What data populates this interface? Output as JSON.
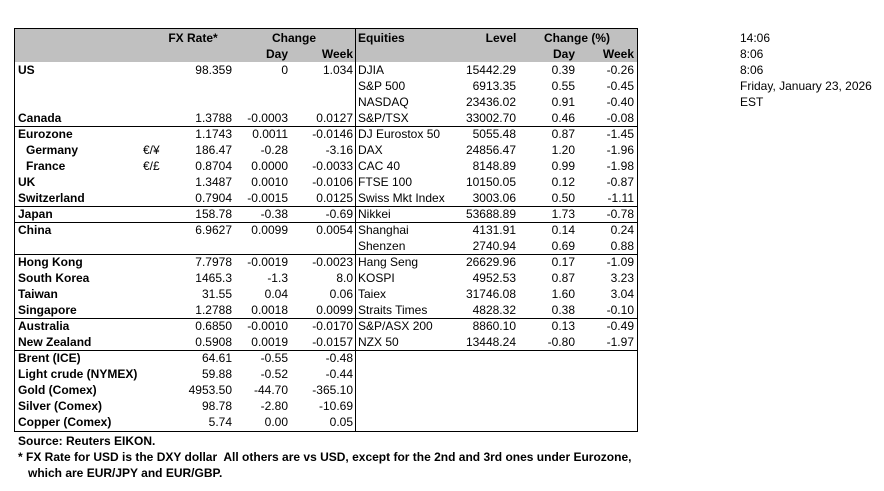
{
  "table": {
    "header": {
      "fx_rate": "FX Rate*",
      "change": "Change",
      "fx_day": "Day",
      "fx_week": "Week",
      "equities": "Equities",
      "level": "Level",
      "change_pct": "Change (%)",
      "eq_day": "Day",
      "eq_week": "Week"
    },
    "rows": [
      {
        "country": "US",
        "fx": "98.359",
        "fx_day": "0",
        "fx_week": "1.034",
        "equity": "DJIA",
        "level": "15442.29",
        "eq_day": "0.39",
        "eq_week": "-0.26"
      },
      {
        "equity": "S&P 500",
        "level": "6913.35",
        "eq_day": "0.55",
        "eq_week": "-0.45"
      },
      {
        "equity": "NASDAQ",
        "level": "23436.02",
        "eq_day": "0.91",
        "eq_week": "-0.40"
      },
      {
        "country": "Canada",
        "fx": "1.3788",
        "fx_day": "-0.0003",
        "fx_week": "0.0127",
        "equity": "S&P/TSX",
        "level": "33002.70",
        "eq_day": "0.46",
        "eq_week": "-0.08"
      },
      {
        "country": "Eurozone",
        "fx": "1.1743",
        "fx_day": "0.0011",
        "fx_week": "-0.0146",
        "equity": "DJ Eurostox 50",
        "level": "5055.48",
        "eq_day": "0.87",
        "eq_week": "-1.45"
      },
      {
        "country": "Germany",
        "pair": "€/¥",
        "fx": "186.47",
        "fx_day": "-0.28",
        "fx_week": "-3.16",
        "equity": "DAX",
        "level": "24856.47",
        "eq_day": "1.20",
        "eq_week": "-1.96"
      },
      {
        "country": "France",
        "pair": "€/£",
        "fx": "0.8704",
        "fx_day": "0.0000",
        "fx_week": "-0.0033",
        "equity": "CAC 40",
        "level": "8148.89",
        "eq_day": "0.99",
        "eq_week": "-1.98"
      },
      {
        "country": "UK",
        "fx": "1.3487",
        "fx_day": "0.0010",
        "fx_week": "-0.0106",
        "equity": "FTSE 100",
        "level": "10150.05",
        "eq_day": "0.12",
        "eq_week": "-0.87"
      },
      {
        "country": "Switzerland",
        "fx": "0.7904",
        "fx_day": "-0.0015",
        "fx_week": "0.0125",
        "equity": "Swiss Mkt Index",
        "level": "3003.06",
        "eq_day": "0.50",
        "eq_week": "-1.11"
      },
      {
        "country": "Japan",
        "fx": "158.78",
        "fx_day": "-0.38",
        "fx_week": "-0.69",
        "equity": "Nikkei",
        "level": "53688.89",
        "eq_day": "1.73",
        "eq_week": "-0.78"
      },
      {
        "country": "China",
        "fx": "6.9627",
        "fx_day": "0.0099",
        "fx_week": "0.0054",
        "equity": "Shanghai",
        "level": "4131.91",
        "eq_day": "0.14",
        "eq_week": "0.24"
      },
      {
        "equity": "Shenzen",
        "level": "2740.94",
        "eq_day": "0.69",
        "eq_week": "0.88"
      },
      {
        "country": "Hong Kong",
        "fx": "7.7978",
        "fx_day": "-0.0019",
        "fx_week": "-0.0023",
        "equity": "Hang Seng",
        "level": "26629.96",
        "eq_day": "0.17",
        "eq_week": "-1.09"
      },
      {
        "country": "South Korea",
        "fx": "1465.3",
        "fx_day": "-1.3",
        "fx_week": "8.0",
        "equity": "KOSPI",
        "level": "4952.53",
        "eq_day": "0.87",
        "eq_week": "3.23"
      },
      {
        "country": "Taiwan",
        "fx": "31.55",
        "fx_day": "0.04",
        "fx_week": "0.06",
        "equity": "Taiex",
        "level": "31746.08",
        "eq_day": "1.60",
        "eq_week": "3.04"
      },
      {
        "country": "Singapore",
        "fx": "1.2788",
        "fx_day": "0.0018",
        "fx_week": "0.0099",
        "equity": "Straits Times",
        "level": "4828.32",
        "eq_day": "0.38",
        "eq_week": "-0.10"
      },
      {
        "country": "Australia",
        "fx": "0.6850",
        "fx_day": "-0.0010",
        "fx_week": "-0.0170",
        "equity": "S&P/ASX 200",
        "level": "8860.10",
        "eq_day": "0.13",
        "eq_week": "-0.49"
      },
      {
        "country": "New Zealand",
        "fx": "0.5908",
        "fx_day": "0.0019",
        "fx_week": "-0.0157",
        "equity": "NZX 50",
        "level": "13448.24",
        "eq_day": "-0.80",
        "eq_week": "-1.97"
      },
      {
        "country": "Brent (ICE)",
        "fx": "64.61",
        "fx_day": "-0.55",
        "fx_week": "-0.48"
      },
      {
        "country": "Light crude (NYMEX)",
        "fx": "59.88",
        "fx_day": "-0.52",
        "fx_week": "-0.44"
      },
      {
        "country": "Gold (Comex)",
        "fx": "4953.50",
        "fx_day": "-44.70",
        "fx_week": "-365.10"
      },
      {
        "country": "Silver (Comex)",
        "fx": "98.78",
        "fx_day": "-2.80",
        "fx_week": "-10.69"
      },
      {
        "country": "Copper (Comex)",
        "fx": "5.74",
        "fx_day": "0.00",
        "fx_week": "0.05"
      }
    ]
  },
  "notes": {
    "source": "Source:  Reuters EIKON.",
    "footnote_1": "* FX Rate for USD is the DXY dollar  All others are vs USD, except for the 2nd and 3rd ones under Eurozone,",
    "footnote_2": "   which are EUR/JPY and EUR/GBP."
  },
  "timestamps": [
    "14:06",
    "8:06",
    "8:06",
    "Friday, January 23, 2026",
    "EST"
  ]
}
